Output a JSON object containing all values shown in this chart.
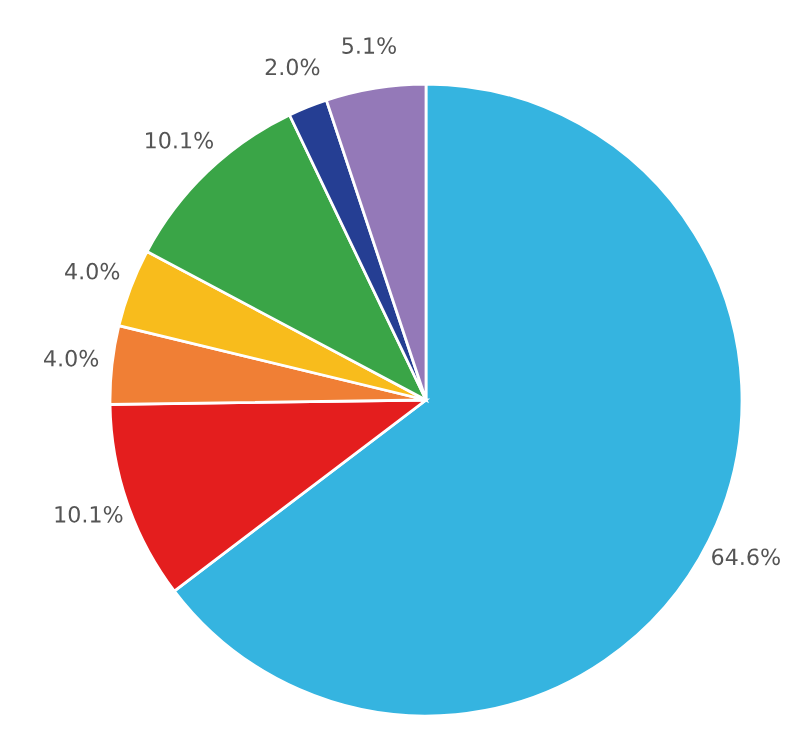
{
  "chart_data": {
    "type": "pie",
    "categories": [
      null,
      null,
      null,
      null,
      null,
      null,
      null
    ],
    "values": [
      64.6,
      10.1,
      4.0,
      4.0,
      10.1,
      2.0,
      5.1
    ],
    "colors": [
      "#35b4e0",
      "#e41e1e",
      "#f07f35",
      "#f8bc1c",
      "#3aa547",
      "#253e93",
      "#9479b8"
    ],
    "value_labels": [
      "64.6%",
      "10.1%",
      "4.0%",
      "4.0%",
      "10.1%",
      "2.0%",
      "5.1%"
    ]
  }
}
